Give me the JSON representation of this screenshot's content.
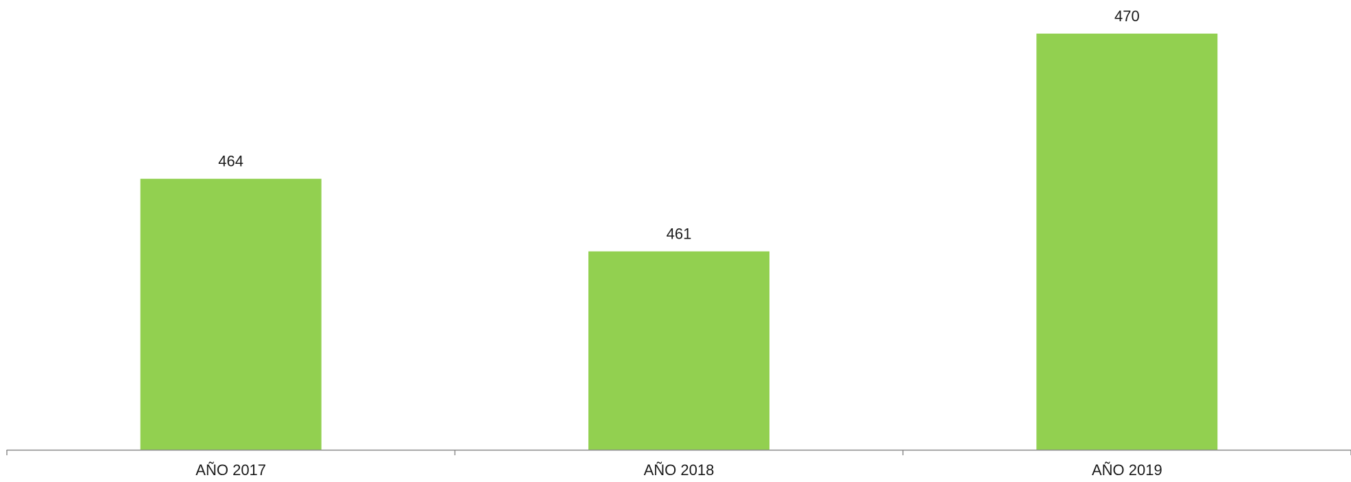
{
  "chart_data": {
    "type": "bar",
    "categories": [
      "AÑO 2017",
      "AÑO 2018",
      "AÑO 2019"
    ],
    "values": [
      464,
      461,
      470
    ],
    "title": "",
    "xlabel": "",
    "ylabel": "",
    "ylim": [
      452.8,
      470
    ],
    "grid": false,
    "legend": "none",
    "data_labels": true,
    "colors": {
      "bar": "#92d050",
      "axis": "#8c8c8c"
    }
  }
}
